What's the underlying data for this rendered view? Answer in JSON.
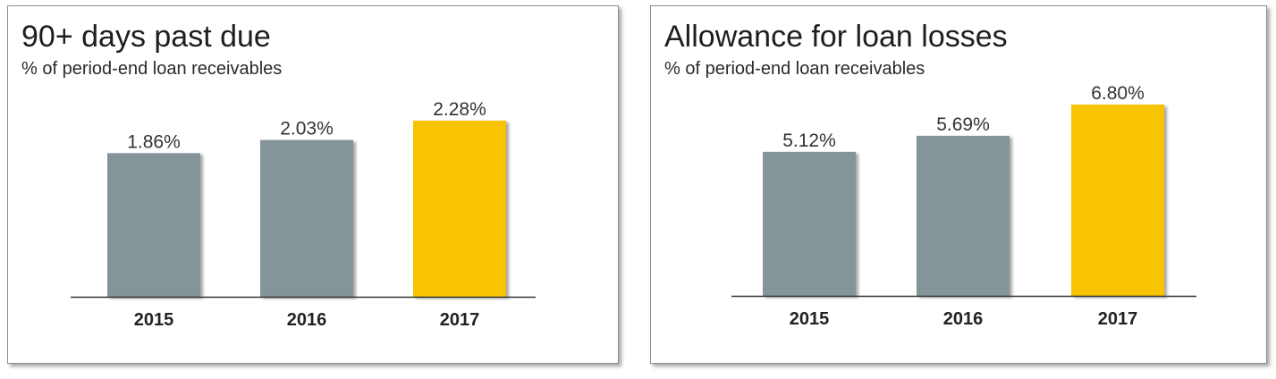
{
  "chart_data": [
    {
      "type": "bar",
      "title": "90+ days past due",
      "subtitle": "% of period-end loan receivables",
      "categories": [
        "2015",
        "2016",
        "2017"
      ],
      "values": [
        1.86,
        2.03,
        2.28
      ],
      "value_labels": [
        "1.86%",
        "2.03%",
        "2.28%"
      ],
      "colors": [
        "#84959a",
        "#84959a",
        "#f8c300"
      ],
      "ylim": [
        0,
        2.28
      ],
      "grid": false,
      "legend": "none"
    },
    {
      "type": "bar",
      "title": "Allowance for loan losses",
      "subtitle": "% of period-end loan receivables",
      "categories": [
        "2015",
        "2016",
        "2017"
      ],
      "values": [
        5.12,
        5.69,
        6.8
      ],
      "value_labels": [
        "5.12%",
        "5.69%",
        "6.80%"
      ],
      "colors": [
        "#84959a",
        "#84959a",
        "#f8c300"
      ],
      "ylim": [
        0,
        6.8
      ],
      "grid": false,
      "legend": "none"
    }
  ]
}
